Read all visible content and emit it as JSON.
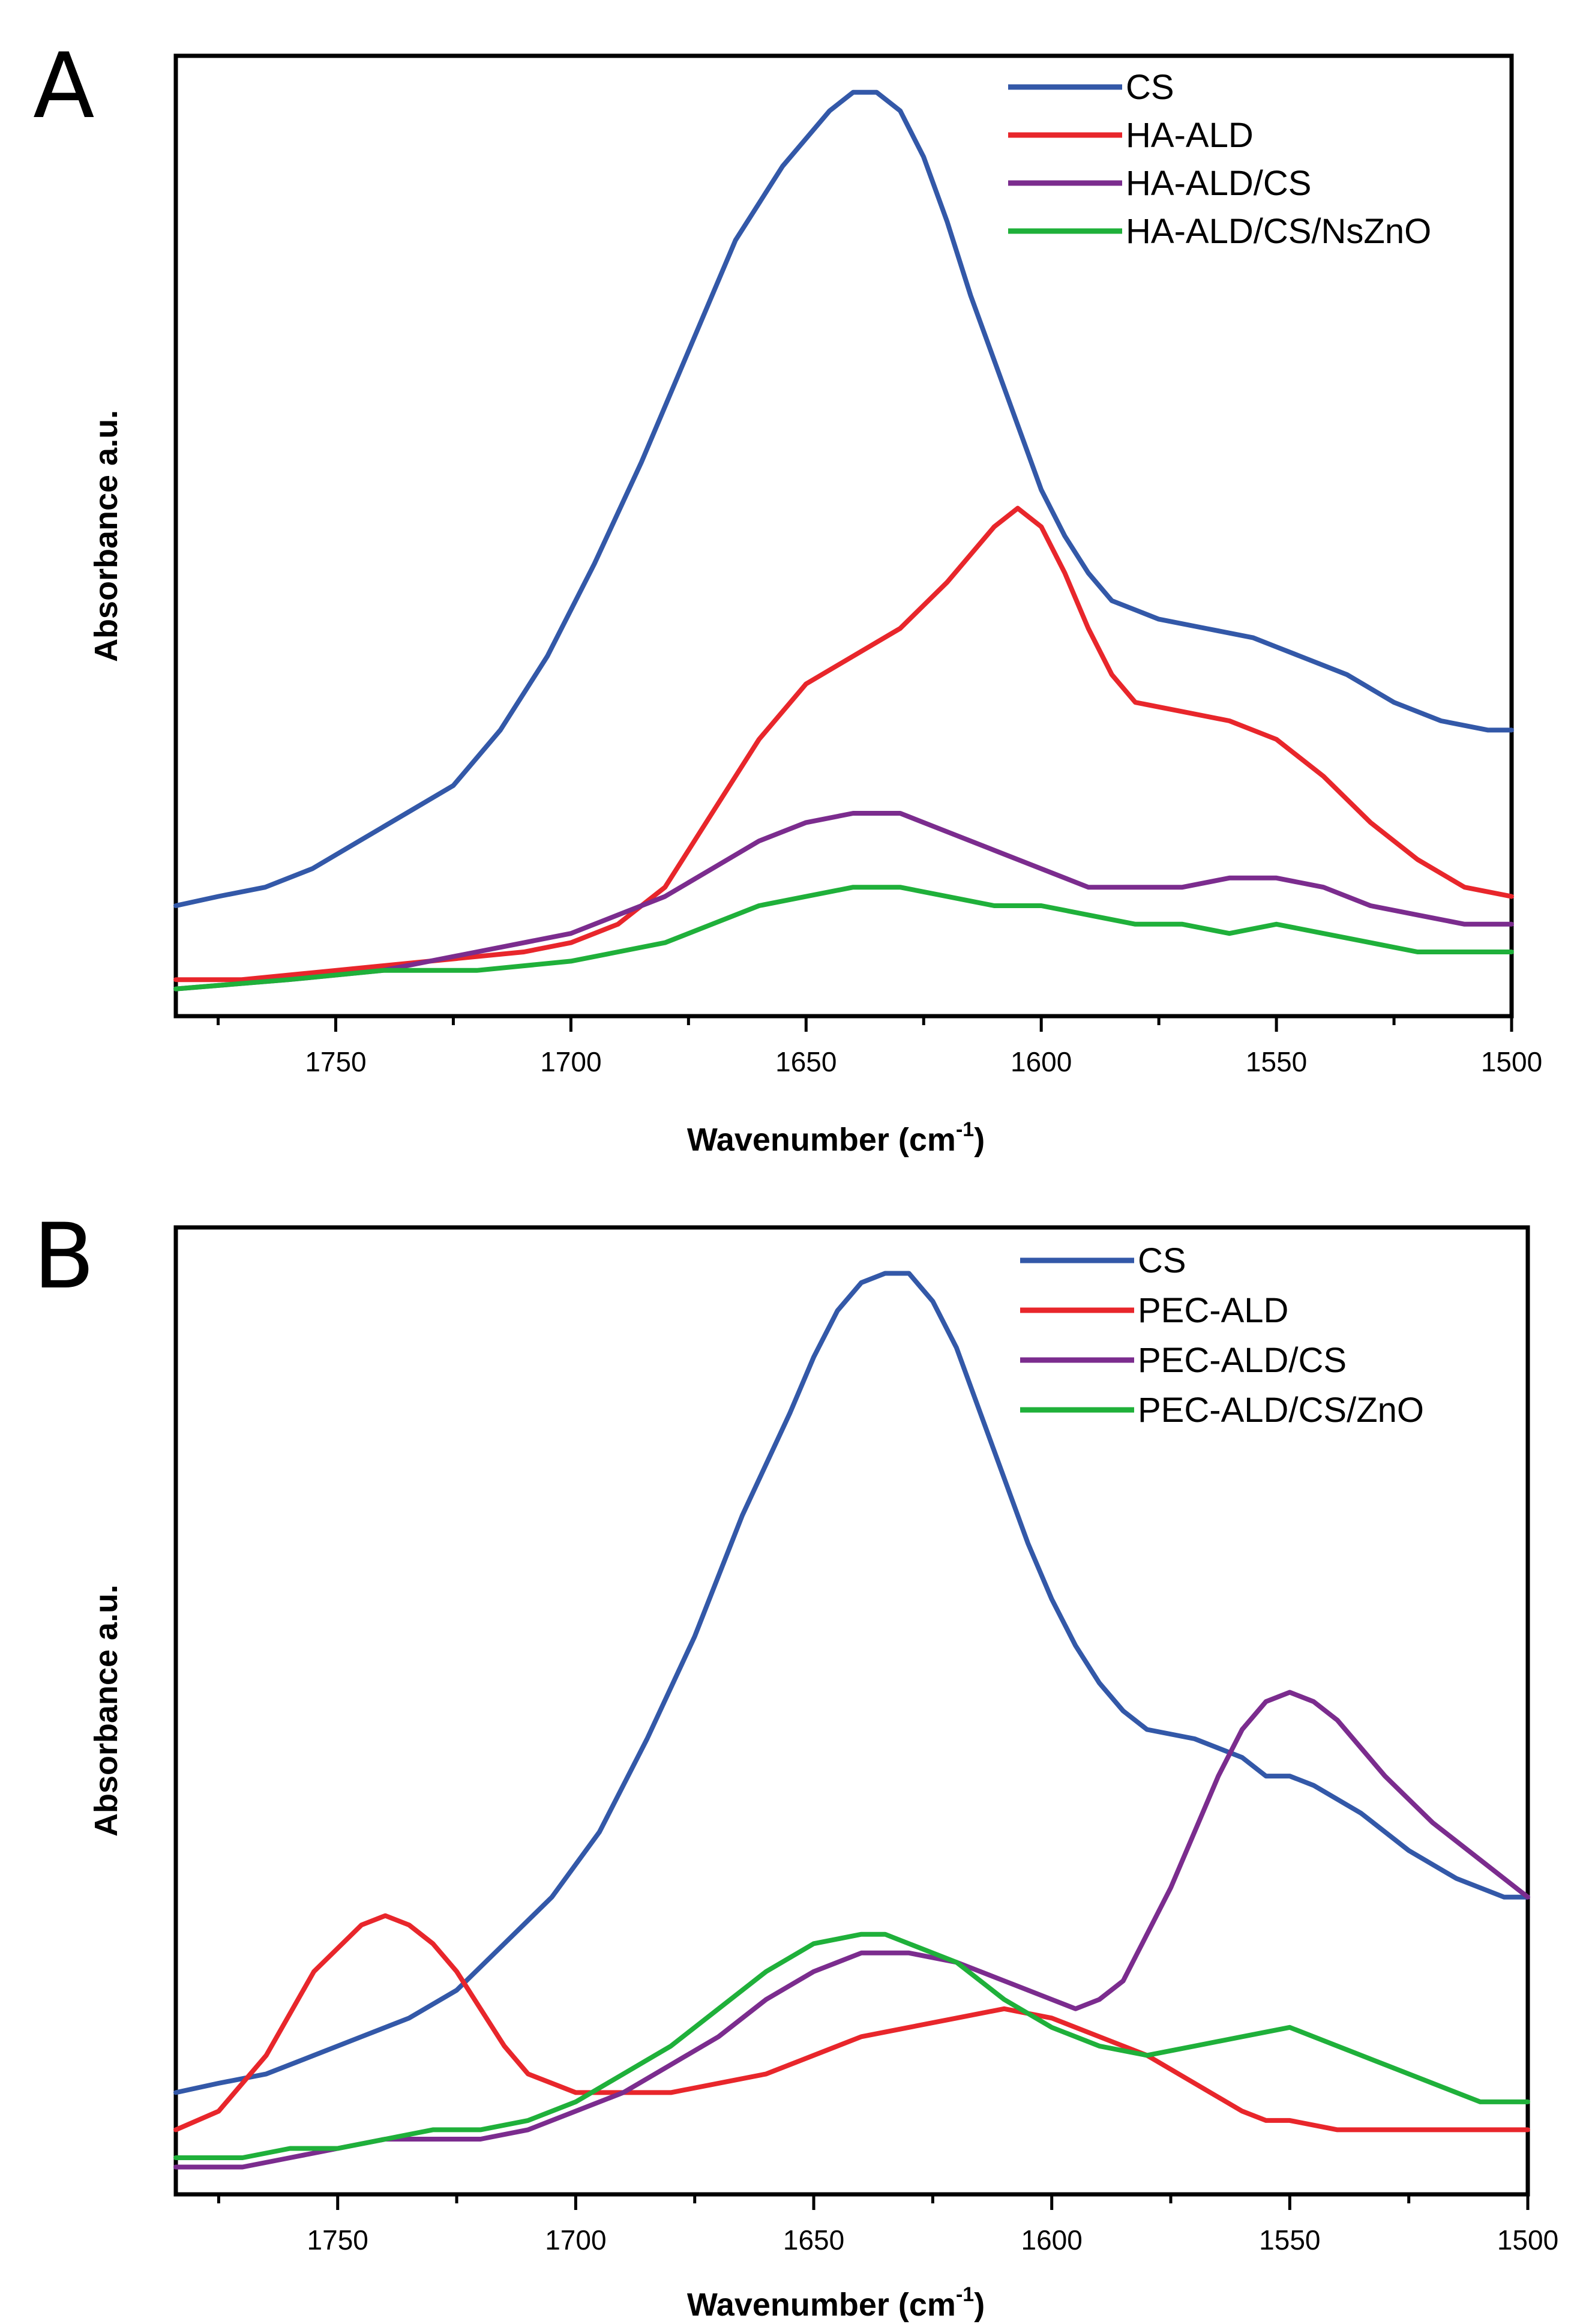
{
  "chart_data": [
    {
      "panel_label": "A",
      "type": "line",
      "xlabel": "Wavenumber (cm",
      "xlabel_sup": "-1",
      "xlabel_close": ")",
      "ylabel": "Absorbance a.u.",
      "xlim": [
        1784,
        1500
      ],
      "ylim": [
        0,
        100
      ],
      "xticks": [
        1750,
        1700,
        1650,
        1600,
        1550,
        1500
      ],
      "xtick_labels": [
        "1750",
        "1700",
        "1650",
        "1600",
        "1550",
        "1500"
      ],
      "legend_position": "top-right",
      "series": [
        {
          "name": "CS",
          "color": "#3358a8",
          "x": [
            1784,
            1775,
            1765,
            1755,
            1745,
            1735,
            1725,
            1715,
            1705,
            1695,
            1685,
            1675,
            1665,
            1655,
            1650,
            1645,
            1640,
            1635,
            1630,
            1625,
            1620,
            1615,
            1610,
            1605,
            1600,
            1595,
            1590,
            1585,
            1580,
            1575,
            1565,
            1555,
            1550,
            1545,
            1535,
            1525,
            1515,
            1505,
            1500
          ],
          "y": [
            10,
            11,
            12,
            14,
            17,
            20,
            23,
            29,
            37,
            47,
            58,
            70,
            82,
            90,
            93,
            96,
            98,
            98,
            96,
            91,
            84,
            76,
            69,
            62,
            55,
            50,
            46,
            43,
            42,
            41,
            40,
            39,
            38,
            37,
            35,
            32,
            30,
            29,
            29
          ]
        },
        {
          "name": "HA-ALD",
          "color": "#e8262b",
          "x": [
            1784,
            1770,
            1750,
            1730,
            1710,
            1700,
            1690,
            1680,
            1670,
            1660,
            1650,
            1640,
            1630,
            1620,
            1615,
            1610,
            1605,
            1600,
            1595,
            1590,
            1585,
            1580,
            1570,
            1560,
            1550,
            1540,
            1530,
            1520,
            1510,
            1500
          ],
          "y": [
            2,
            2,
            3,
            4,
            5,
            6,
            8,
            12,
            20,
            28,
            34,
            37,
            40,
            45,
            48,
            51,
            53,
            51,
            46,
            40,
            35,
            32,
            31,
            30,
            28,
            24,
            19,
            15,
            12,
            11
          ]
        },
        {
          "name": "HA-ALD/CS",
          "color": "#7b2c8e",
          "x": [
            1784,
            1760,
            1740,
            1720,
            1700,
            1690,
            1680,
            1670,
            1660,
            1650,
            1640,
            1635,
            1630,
            1620,
            1610,
            1600,
            1590,
            1580,
            1570,
            1560,
            1550,
            1540,
            1530,
            1520,
            1510,
            1500
          ],
          "y": [
            1,
            2,
            3,
            5,
            7,
            9,
            11,
            14,
            17,
            19,
            20,
            20,
            20,
            18,
            16,
            14,
            12,
            12,
            12,
            13,
            13,
            12,
            10,
            9,
            8,
            8
          ]
        },
        {
          "name": "HA-ALD/CS/NsZnO",
          "color": "#1fb03a",
          "x": [
            1784,
            1760,
            1740,
            1720,
            1700,
            1690,
            1680,
            1670,
            1660,
            1650,
            1640,
            1635,
            1630,
            1620,
            1610,
            1600,
            1590,
            1580,
            1570,
            1560,
            1550,
            1540,
            1530,
            1520,
            1510,
            1500
          ],
          "y": [
            1,
            2,
            3,
            3,
            4,
            5,
            6,
            8,
            10,
            11,
            12,
            12,
            12,
            11,
            10,
            10,
            9,
            8,
            8,
            7,
            8,
            7,
            6,
            5,
            5,
            5
          ]
        }
      ]
    },
    {
      "panel_label": "B",
      "type": "line",
      "xlabel": "Wavenumber (cm",
      "xlabel_sup": "-1",
      "xlabel_close": ")",
      "ylabel": "Absorbance a.u.",
      "xlim": [
        1784,
        1500
      ],
      "ylim": [
        0,
        100
      ],
      "xticks": [
        1750,
        1700,
        1650,
        1600,
        1550,
        1500
      ],
      "xtick_labels": [
        "1750",
        "1700",
        "1650",
        "1600",
        "1550",
        "1500"
      ],
      "legend_position": "top-right",
      "series": [
        {
          "name": "CS",
          "color": "#3358a8",
          "x": [
            1784,
            1775,
            1765,
            1755,
            1745,
            1735,
            1725,
            1715,
            1705,
            1695,
            1685,
            1675,
            1665,
            1655,
            1650,
            1645,
            1640,
            1635,
            1630,
            1625,
            1620,
            1615,
            1610,
            1605,
            1600,
            1595,
            1590,
            1585,
            1580,
            1570,
            1560,
            1555,
            1550,
            1545,
            1535,
            1525,
            1515,
            1505,
            1500
          ],
          "y": [
            9,
            10,
            11,
            13,
            15,
            17,
            20,
            25,
            30,
            37,
            47,
            58,
            71,
            82,
            88,
            93,
            96,
            97,
            97,
            94,
            89,
            82,
            75,
            68,
            62,
            57,
            53,
            50,
            48,
            47,
            45,
            43,
            43,
            42,
            39,
            35,
            32,
            30,
            30
          ]
        },
        {
          "name": "PEC-ALD",
          "color": "#e8262b",
          "x": [
            1784,
            1775,
            1765,
            1755,
            1745,
            1740,
            1735,
            1730,
            1725,
            1720,
            1715,
            1710,
            1705,
            1700,
            1690,
            1680,
            1670,
            1660,
            1655,
            1650,
            1640,
            1630,
            1620,
            1610,
            1600,
            1590,
            1580,
            1570,
            1560,
            1555,
            1550,
            1540,
            1530,
            1520,
            1510,
            1500
          ],
          "y": [
            5,
            7,
            13,
            22,
            27,
            28,
            27,
            25,
            22,
            18,
            14,
            11,
            10,
            9,
            9,
            9,
            10,
            11,
            12,
            13,
            15,
            16,
            17,
            18,
            17,
            15,
            13,
            10,
            7,
            6,
            6,
            5,
            5,
            5,
            5,
            5
          ]
        },
        {
          "name": "PEC-ALD/CS",
          "color": "#7b2c8e",
          "x": [
            1784,
            1770,
            1760,
            1750,
            1740,
            1730,
            1720,
            1710,
            1700,
            1690,
            1680,
            1670,
            1660,
            1650,
            1640,
            1635,
            1630,
            1620,
            1610,
            1600,
            1595,
            1590,
            1585,
            1580,
            1575,
            1570,
            1565,
            1560,
            1555,
            1550,
            1545,
            1540,
            1535,
            1530,
            1520,
            1510,
            1500
          ],
          "y": [
            1,
            1,
            2,
            3,
            4,
            4,
            4,
            5,
            7,
            9,
            12,
            15,
            19,
            22,
            24,
            24,
            24,
            23,
            21,
            19,
            18,
            19,
            21,
            26,
            31,
            37,
            43,
            48,
            51,
            52,
            51,
            49,
            46,
            43,
            38,
            34,
            30
          ]
        },
        {
          "name": "PEC-ALD/CS/ZnO",
          "color": "#1fb03a",
          "x": [
            1784,
            1770,
            1760,
            1750,
            1740,
            1730,
            1720,
            1710,
            1700,
            1690,
            1680,
            1670,
            1660,
            1650,
            1640,
            1635,
            1630,
            1620,
            1610,
            1600,
            1590,
            1580,
            1570,
            1560,
            1550,
            1540,
            1530,
            1520,
            1510,
            1500
          ],
          "y": [
            2,
            2,
            3,
            3,
            4,
            5,
            5,
            6,
            8,
            11,
            14,
            18,
            22,
            25,
            26,
            26,
            25,
            23,
            19,
            16,
            14,
            13,
            14,
            15,
            16,
            14,
            12,
            10,
            8,
            8
          ]
        }
      ]
    }
  ]
}
